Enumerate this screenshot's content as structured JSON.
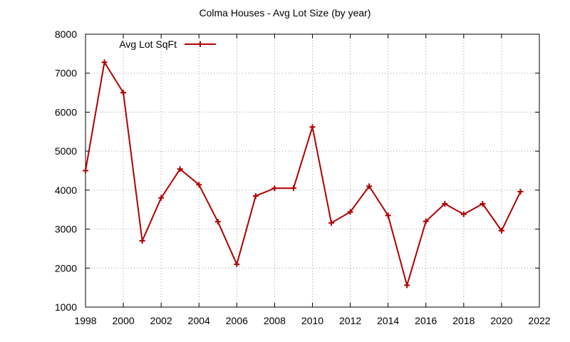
{
  "chart_data": {
    "type": "line",
    "title": "Colma Houses - Avg Lot Size (by year)",
    "xlabel": "",
    "ylabel": "",
    "xlim": [
      1998,
      2022
    ],
    "ylim": [
      1000,
      8000
    ],
    "x_ticks": [
      "1998",
      "2000",
      "2002",
      "2004",
      "2006",
      "2008",
      "2010",
      "2012",
      "2014",
      "2016",
      "2018",
      "2020",
      "2022"
    ],
    "y_ticks": [
      "1000",
      "2000",
      "3000",
      "4000",
      "5000",
      "6000",
      "7000",
      "8000"
    ],
    "grid": true,
    "legend_position": "top-left",
    "series": [
      {
        "name": "Avg Lot SqFt",
        "color": "#b00000",
        "marker": "plus",
        "x": [
          1998,
          1999,
          2000,
          2001,
          2002,
          2003,
          2004,
          2005,
          2006,
          2007,
          2008,
          2009,
          2010,
          2011,
          2012,
          2013,
          2014,
          2015,
          2016,
          2017,
          2018,
          2019,
          2020,
          2021
        ],
        "y": [
          4500,
          7280,
          6500,
          2700,
          3800,
          4540,
          4140,
          3190,
          2100,
          3850,
          4050,
          4050,
          5620,
          3160,
          3440,
          4100,
          3350,
          1560,
          3200,
          3650,
          3380,
          3650,
          2960,
          3960
        ]
      }
    ]
  }
}
